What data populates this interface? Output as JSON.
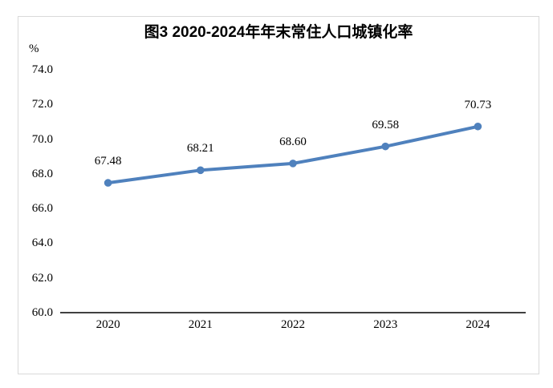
{
  "figure": {
    "background_color": "#ffffff",
    "border_color": "#d9d9d9"
  },
  "chart_data": {
    "type": "line",
    "title": "图3 2020-2024年年末常住人口城镇化率",
    "ylabel": "%",
    "xlabel": "",
    "categories": [
      "2020",
      "2021",
      "2022",
      "2023",
      "2024"
    ],
    "values": [
      67.48,
      68.21,
      68.6,
      69.58,
      70.73
    ],
    "data_labels": [
      "67.48",
      "68.21",
      "68.60",
      "69.58",
      "70.73"
    ],
    "ylim": [
      60.0,
      74.0
    ],
    "ytick_step": 2.0,
    "ytick_labels": [
      "60.0",
      "62.0",
      "64.0",
      "66.0",
      "68.0",
      "70.0",
      "72.0",
      "74.0"
    ],
    "grid": false,
    "legend": false,
    "line_color": "#4f81bd",
    "marker": "circle",
    "axis_color": "#000000"
  }
}
